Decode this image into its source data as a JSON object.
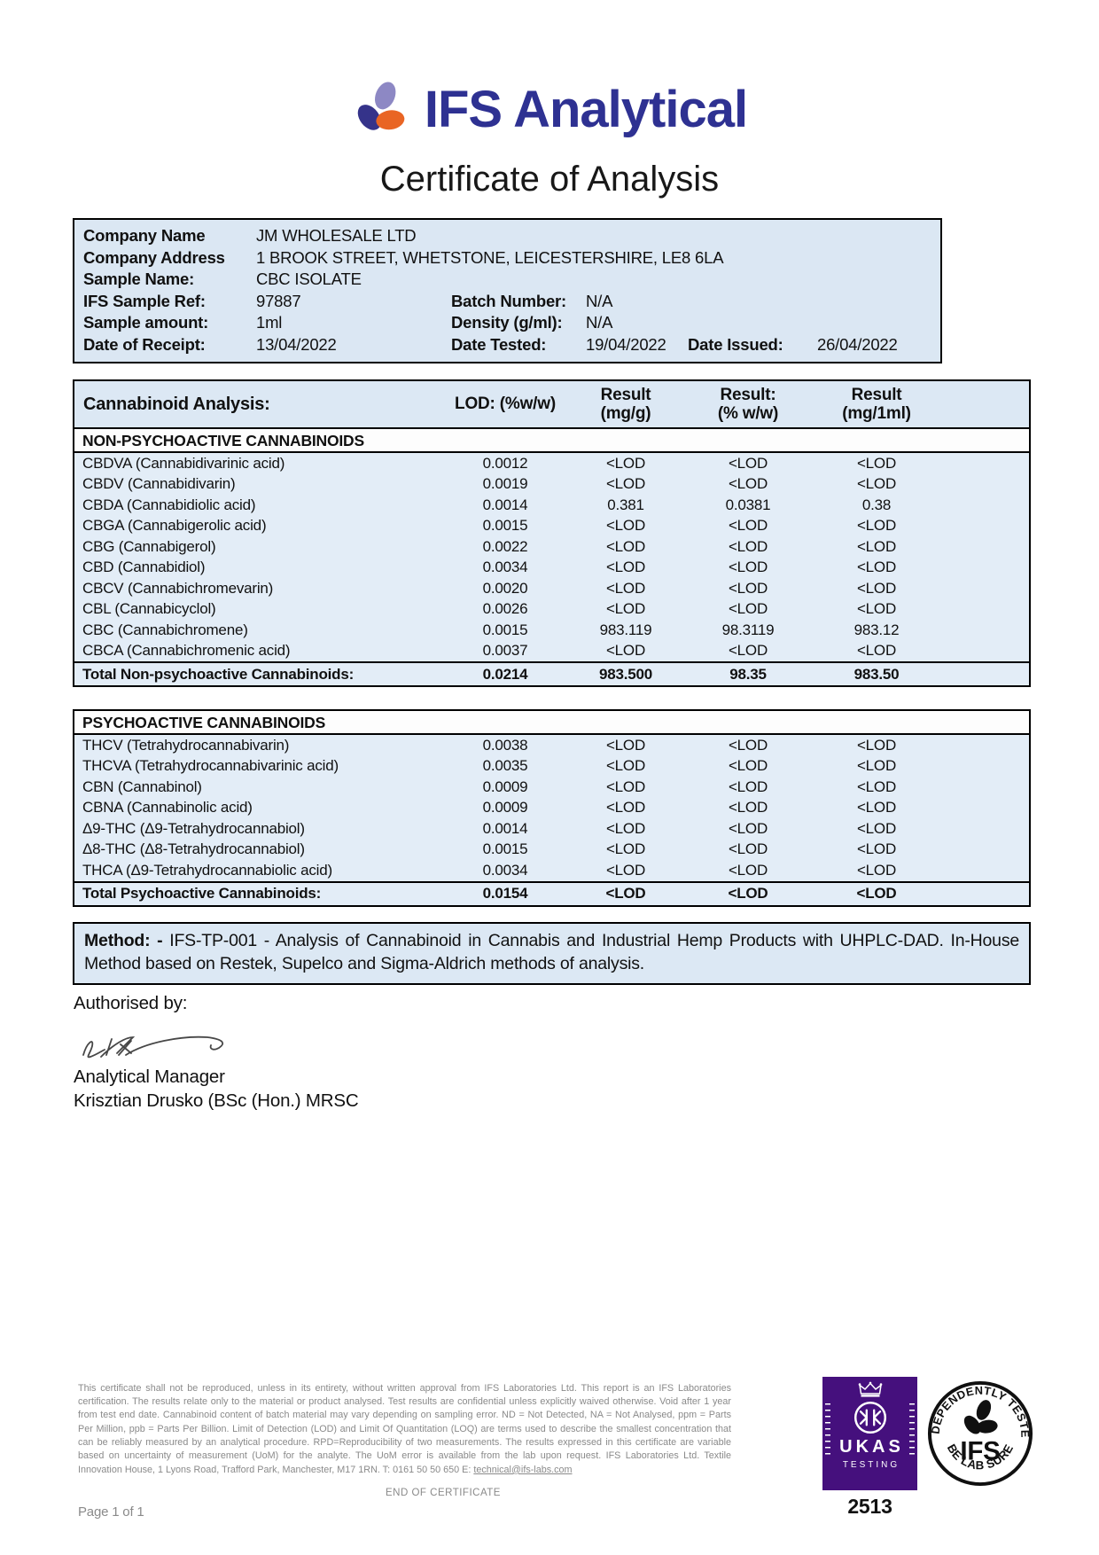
{
  "brand": {
    "name": "IFS Analytical"
  },
  "title": "Certificate of Analysis",
  "colors": {
    "brand_navy": "#2e3192",
    "petal_lavender": "#8d88c4",
    "petal_navy": "#35338a",
    "petal_orange": "#e96524",
    "table_blue": "#dce8f4",
    "ukas_purple": "#45107d"
  },
  "info": {
    "rows": [
      {
        "label": "Company Name",
        "value": "JM WHOLESALE LTD"
      },
      {
        "label": "Company Address",
        "value": "1 BROOK STREET, WHETSTONE, LEICESTERSHIRE, LE8 6LA"
      },
      {
        "label": "Sample Name:",
        "value": "CBC ISOLATE"
      },
      {
        "label": "IFS Sample Ref:",
        "value": "97887",
        "label2": "Batch Number:",
        "value2": "N/A"
      },
      {
        "label": "Sample amount:",
        "value": "1ml",
        "label2": "Density (g/ml):",
        "value2": "N/A"
      },
      {
        "label": "Date of Receipt:",
        "value": "13/04/2022",
        "label2": "Date Tested:",
        "value2": "19/04/2022",
        "label3": "Date Issued:",
        "value3": "26/04/2022"
      }
    ]
  },
  "analysis": {
    "columns": [
      {
        "line1": "Cannabinoid Analysis:",
        "line2": ""
      },
      {
        "line1": "LOD: (%w/w)",
        "line2": ""
      },
      {
        "line1": "Result",
        "line2": "(mg/g)"
      },
      {
        "line1": "Result:",
        "line2": "(% w/w)"
      },
      {
        "line1": "Result",
        "line2": "(mg/1ml)"
      }
    ],
    "sections": [
      {
        "header": "NON-PSYCHOACTIVE CANNABINOIDS",
        "rows": [
          {
            "name": "CBDVA (Cannabidivarinic acid)",
            "lod": "0.0012",
            "mg_g": "<LOD",
            "pct": "<LOD",
            "mg_ml": "<LOD"
          },
          {
            "name": "CBDV (Cannabidivarin)",
            "lod": "0.0019",
            "mg_g": "<LOD",
            "pct": "<LOD",
            "mg_ml": "<LOD"
          },
          {
            "name": "CBDA (Cannabidiolic acid)",
            "lod": "0.0014",
            "mg_g": "0.381",
            "pct": "0.0381",
            "mg_ml": "0.38"
          },
          {
            "name": "CBGA (Cannabigerolic acid)",
            "lod": "0.0015",
            "mg_g": "<LOD",
            "pct": "<LOD",
            "mg_ml": "<LOD"
          },
          {
            "name": "CBG (Cannabigerol)",
            "lod": "0.0022",
            "mg_g": "<LOD",
            "pct": "<LOD",
            "mg_ml": "<LOD"
          },
          {
            "name": "CBD (Cannabidiol)",
            "lod": "0.0034",
            "mg_g": "<LOD",
            "pct": "<LOD",
            "mg_ml": "<LOD"
          },
          {
            "name": "CBCV (Cannabichromevarin)",
            "lod": "0.0020",
            "mg_g": "<LOD",
            "pct": "<LOD",
            "mg_ml": "<LOD"
          },
          {
            "name": "CBL (Cannabicyclol)",
            "lod": "0.0026",
            "mg_g": "<LOD",
            "pct": "<LOD",
            "mg_ml": "<LOD"
          },
          {
            "name": "CBC (Cannabichromene)",
            "lod": "0.0015",
            "mg_g": "983.119",
            "pct": "98.3119",
            "mg_ml": "983.12"
          },
          {
            "name": "CBCA (Cannabichromenic acid)",
            "lod": "0.0037",
            "mg_g": "<LOD",
            "pct": "<LOD",
            "mg_ml": "<LOD"
          }
        ],
        "total": {
          "name": "Total Non-psychoactive Cannabinoids:",
          "lod": "0.0214",
          "mg_g": "983.500",
          "pct": "98.35",
          "mg_ml": "983.50"
        }
      },
      {
        "header": "PSYCHOACTIVE CANNABINOIDS",
        "rows": [
          {
            "name": "THCV (Tetrahydrocannabivarin)",
            "lod": "0.0038",
            "mg_g": "<LOD",
            "pct": "<LOD",
            "mg_ml": "<LOD"
          },
          {
            "name": "THCVA (Tetrahydrocannabivarinic acid)",
            "lod": "0.0035",
            "mg_g": "<LOD",
            "pct": "<LOD",
            "mg_ml": "<LOD"
          },
          {
            "name": "CBN (Cannabinol)",
            "lod": "0.0009",
            "mg_g": "<LOD",
            "pct": "<LOD",
            "mg_ml": "<LOD"
          },
          {
            "name": "CBNA (Cannabinolic acid)",
            "lod": "0.0009",
            "mg_g": "<LOD",
            "pct": "<LOD",
            "mg_ml": "<LOD"
          },
          {
            "name": "Δ9-THC (Δ9-Tetrahydrocannabiol)",
            "lod": "0.0014",
            "mg_g": "<LOD",
            "pct": "<LOD",
            "mg_ml": "<LOD"
          },
          {
            "name": "Δ8-THC (Δ8-Tetrahydrocannabiol)",
            "lod": "0.0015",
            "mg_g": "<LOD",
            "pct": "<LOD",
            "mg_ml": "<LOD"
          },
          {
            "name": "THCA (Δ9-Tetrahydrocannabiolic acid)",
            "lod": "0.0034",
            "mg_g": "<LOD",
            "pct": "<LOD",
            "mg_ml": "<LOD"
          }
        ],
        "total": {
          "name": "Total Psychoactive Cannabinoids:",
          "lod": "0.0154",
          "mg_g": "<LOD",
          "pct": "<LOD",
          "mg_ml": "<LOD"
        }
      }
    ]
  },
  "method": {
    "label": "Method: -",
    "text": "IFS-TP-001 - Analysis of Cannabinoid in Cannabis and Industrial Hemp Products with UHPLC-DAD. In-House Method based on Restek, Supelco and Sigma-Aldrich methods of analysis."
  },
  "authorisation": {
    "label": "Authorised by:",
    "role": "Analytical Manager",
    "name": "Krisztian Drusko (BSc (Hon.) MRSC"
  },
  "footer": {
    "disclaimer": "This certificate shall not be reproduced, unless in its entirety, without written approval from IFS Laboratories Ltd. This report is an IFS Laboratories certification. The results relate only to the material or product analysed. Test results are confidential unless explicitly waived otherwise. Void after 1 year from test end date. Cannabinoid content of batch material may vary depending on sampling error. ND = Not Detected, NA = Not Analysed, ppm = Parts Per Million, ppb = Parts Per Billion. Limit of Detection (LOD) and Limit Of Quantitation (LOQ) are terms used to describe the smallest concentration that can be reliably measured by an analytical procedure. RPD=Reproducibility of two measurements. The results expressed in this certificate are variable based on uncertainty of measurement (UoM) for the analyte. The UoM error is available from the lab upon request. IFS Laboratories Ltd. Textile Innovation House, 1 Lyons Road, Trafford Park, Manchester, M17 1RN. T: 0161 50 50 650 E: ",
    "email": "technical@ifs-labs.com",
    "end_text": "END OF CERTIFICATE",
    "page_number": "Page 1 of 1"
  },
  "badges": {
    "ukas": {
      "title": "UKAS",
      "subtitle": "TESTING",
      "number": "2513"
    },
    "ifs": {
      "arc_top": "INDEPENDENTLY TESTED",
      "center": "IFS",
      "arc_bottom": "BE LAB SURE"
    }
  }
}
